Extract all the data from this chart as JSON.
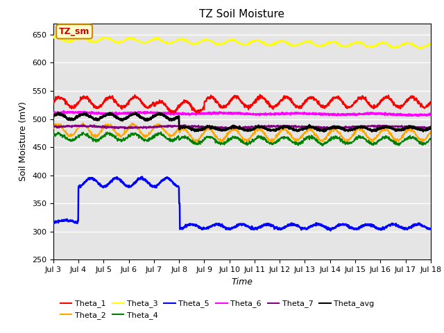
{
  "title": "TZ Soil Moisture",
  "xlabel": "Time",
  "ylabel": "Soil Moisture (mV)",
  "ylim": [
    250,
    670
  ],
  "yticks": [
    250,
    300,
    350,
    400,
    450,
    500,
    550,
    600,
    650
  ],
  "x_labels": [
    "Jul 3",
    "Jul 4",
    "Jul 5",
    "Jul 6",
    "Jul 7",
    "Jul 8",
    "Jul 9",
    "Jul 10",
    "Jul 11",
    "Jul 12",
    "Jul 13",
    "Jul 14",
    "Jul 15",
    "Jul 16",
    "Jul 17",
    "Jul 18"
  ],
  "n_points": 1500,
  "legend_entries": [
    "Theta_1",
    "Theta_2",
    "Theta_3",
    "Theta_4",
    "Theta_5",
    "Theta_6",
    "Theta_7",
    "Theta_avg"
  ],
  "legend_colors": [
    "red",
    "orange",
    "yellow",
    "green",
    "blue",
    "magenta",
    "purple",
    "black"
  ],
  "annotation_text": "TZ_sm",
  "annotation_color": "#cc0000",
  "annotation_bg": "#ffffcc",
  "background_color": "#e5e5e5"
}
